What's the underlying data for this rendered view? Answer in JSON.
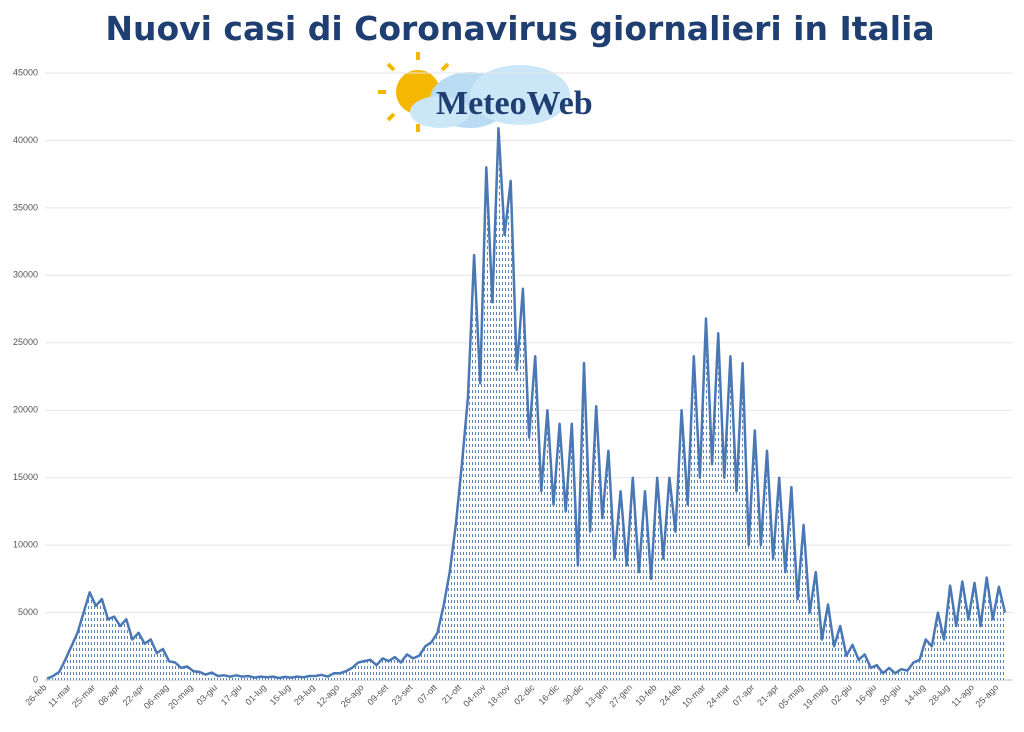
{
  "chart_data": {
    "type": "area",
    "title": "Nuovi casi di Coronavirus giornalieri in Italia",
    "logo": "MeteoWeb",
    "color": "#4a78b5",
    "ylim": [
      0,
      45000
    ],
    "yticks": [
      0,
      5000,
      10000,
      15000,
      20000,
      25000,
      30000,
      35000,
      40000,
      45000
    ],
    "grid": true,
    "categories": [
      "26-feb",
      null,
      null,
      null,
      "11-mar",
      null,
      null,
      null,
      "25-mar",
      null,
      null,
      null,
      "08-apr",
      null,
      null,
      null,
      "22-apr",
      null,
      null,
      null,
      "06-mag",
      null,
      null,
      null,
      "20-mag",
      null,
      null,
      null,
      "03-giu",
      null,
      null,
      null,
      "17-giu",
      null,
      null,
      null,
      "01-lug",
      null,
      null,
      null,
      "15-lug",
      null,
      null,
      null,
      "29-lug",
      null,
      null,
      null,
      "12-ago",
      null,
      null,
      null,
      "26-ago",
      null,
      null,
      null,
      "09-set",
      null,
      null,
      null,
      "23-set",
      null,
      null,
      null,
      "07-ott",
      null,
      null,
      null,
      "21-ott",
      null,
      null,
      null,
      "04-nov",
      null,
      null,
      null,
      "18-nov",
      null,
      null,
      null,
      "02-dic",
      null,
      null,
      null,
      "16-dic",
      null,
      null,
      null,
      "30-dic",
      null,
      null,
      null,
      "13-gen",
      null,
      null,
      null,
      "27-gen",
      null,
      null,
      null,
      "10-feb",
      null,
      null,
      null,
      "24-feb",
      null,
      null,
      null,
      "10-mar",
      null,
      null,
      null,
      "24-mar",
      null,
      null,
      null,
      "07-apr",
      null,
      null,
      null,
      "21-apr",
      null,
      null,
      null,
      "05-mag",
      null,
      null,
      null,
      "19-mag",
      null,
      null,
      null,
      "02-giu",
      null,
      null,
      null,
      "16-giu",
      null,
      null,
      null,
      "30-giu",
      null,
      null,
      null,
      "14-lug",
      null,
      null,
      null,
      "28-lug",
      null,
      null,
      null,
      "11-ago",
      null,
      null,
      null,
      "25-ago",
      null
    ],
    "values": [
      100,
      300,
      600,
      1500,
      2500,
      3500,
      5000,
      6500,
      5500,
      6000,
      4500,
      4700,
      4000,
      4500,
      3000,
      3500,
      2700,
      3000,
      2000,
      2300,
      1400,
      1300,
      900,
      1000,
      650,
      600,
      400,
      550,
      300,
      350,
      250,
      350,
      250,
      300,
      180,
      250,
      200,
      250,
      150,
      230,
      180,
      250,
      200,
      300,
      300,
      380,
      250,
      500,
      500,
      650,
      900,
      1300,
      1400,
      1500,
      1100,
      1600,
      1400,
      1700,
      1300,
      1900,
      1600,
      1800,
      2500,
      2800,
      3500,
      5500,
      8000,
      11500,
      16000,
      21000,
      31500,
      22000,
      38000,
      28000,
      40900,
      33000,
      37000,
      23000,
      29000,
      18000,
      24000,
      14000,
      20000,
      13000,
      19000,
      12500,
      19000,
      8500,
      23500,
      11000,
      20300,
      12000,
      17000,
      9000,
      14000,
      8500,
      15000,
      8000,
      14000,
      7500,
      15000,
      9000,
      15000,
      11000,
      20000,
      13000,
      24000,
      15000,
      26800,
      16000,
      25700,
      15000,
      24000,
      14000,
      23500,
      10000,
      18500,
      10000,
      17000,
      9000,
      15000,
      8000,
      14300,
      6000,
      11500,
      5000,
      8000,
      3000,
      5600,
      2500,
      4000,
      1800,
      2600,
      1500,
      1900,
      900,
      1100,
      500,
      900,
      500,
      800,
      700,
      1300,
      1500,
      3000,
      2500,
      5000,
      3000,
      7000,
      4000,
      7300,
      4500,
      7200,
      4000,
      7600,
      4500,
      6900,
      5000
    ]
  }
}
